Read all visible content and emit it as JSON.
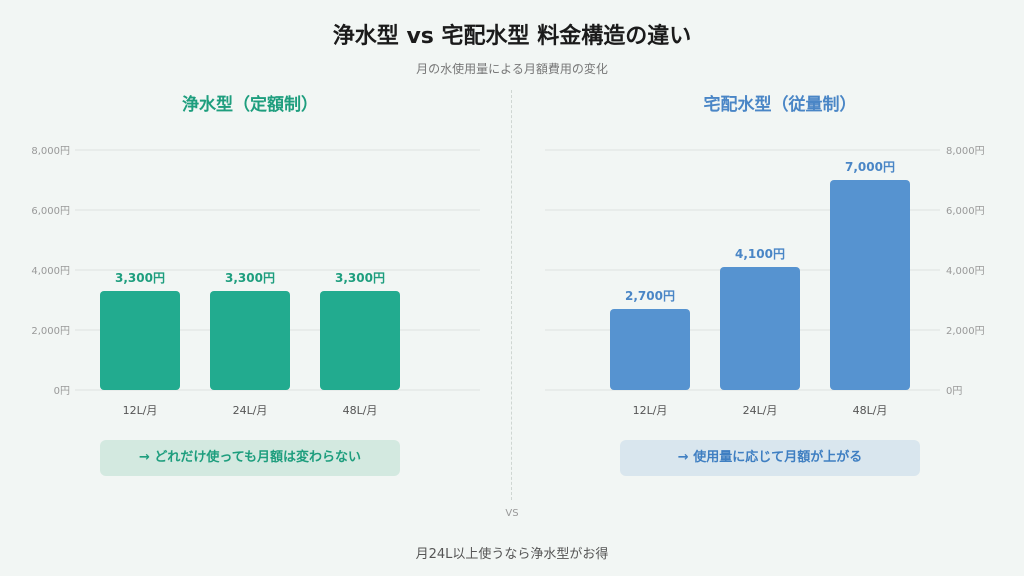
{
  "title": "浄水型 vs 宅配水型 料金構造の違い",
  "subtitle": "月の水使用量による月額費用の変化",
  "vs_label": "VS",
  "footer": "月24L以上使うなら浄水型がお得",
  "colors": {
    "left_accent": "#1e9e7e",
    "left_bar": "#22ab8f",
    "right_accent": "#4a86c6",
    "right_bar": "#5693d0"
  },
  "chart_data": [
    {
      "type": "bar",
      "title": "浄水型（定額制）",
      "categories": [
        "12L/月",
        "24L/月",
        "48L/月"
      ],
      "values": [
        3300,
        3300,
        3300
      ],
      "value_labels": [
        "3,300円",
        "3,300円",
        "3,300円"
      ],
      "ylim": [
        0,
        8000
      ],
      "yticks": [
        0,
        2000,
        4000,
        6000,
        8000
      ],
      "ytick_labels": [
        "0円",
        "2,000円",
        "4,000円",
        "6,000円",
        "8,000円"
      ],
      "axis_side": "left",
      "grid": true,
      "note": "→ どれだけ使っても月額は変わらない"
    },
    {
      "type": "bar",
      "title": "宅配水型（従量制）",
      "categories": [
        "12L/月",
        "24L/月",
        "48L/月"
      ],
      "values": [
        2700,
        4100,
        7000
      ],
      "value_labels": [
        "2,700円",
        "4,100円",
        "7,000円"
      ],
      "ylim": [
        0,
        8000
      ],
      "yticks": [
        0,
        2000,
        4000,
        6000,
        8000
      ],
      "ytick_labels": [
        "0円",
        "2,000円",
        "4,000円",
        "6,000円",
        "8,000円"
      ],
      "axis_side": "right",
      "grid": true,
      "note": "→ 使用量に応じて月額が上がる"
    }
  ]
}
